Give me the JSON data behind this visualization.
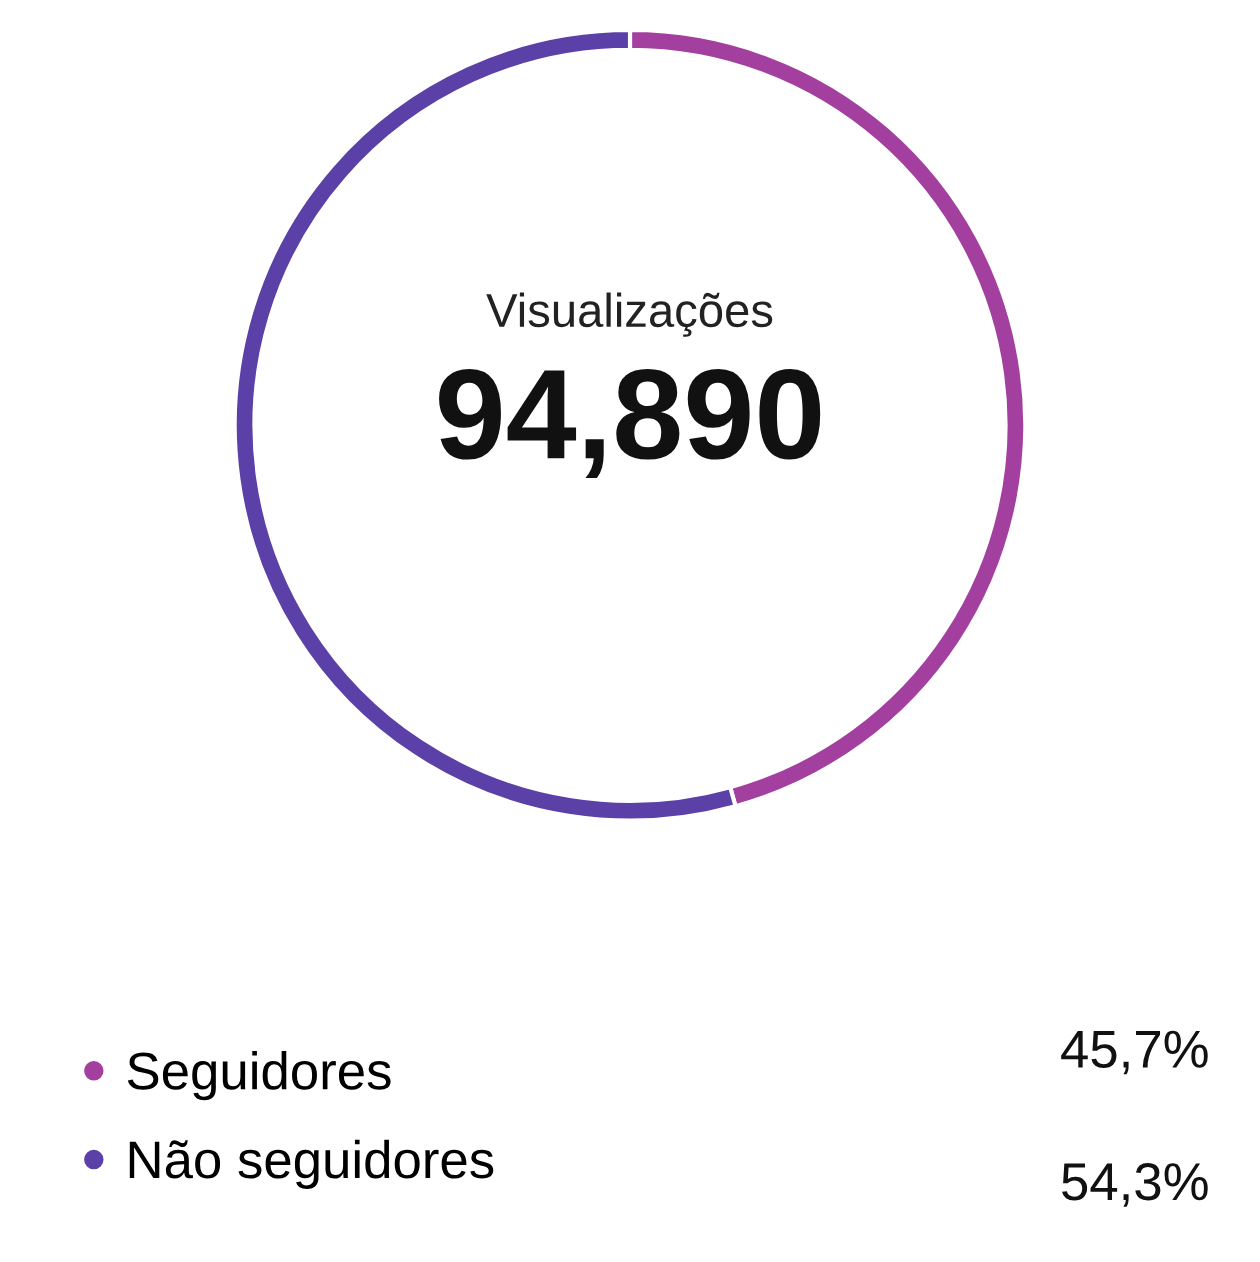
{
  "chart_data": {
    "type": "donut",
    "title": "Visualizações",
    "subtitle": "94,890",
    "categories": [
      "Seguidores",
      "Não seguidores"
    ],
    "values": [
      45.7,
      54.3
    ],
    "colors": [
      "#a3409f",
      "#5b40a8"
    ],
    "value_labels": [
      "45,7%",
      "54,3%"
    ],
    "legend": "bottom"
  }
}
